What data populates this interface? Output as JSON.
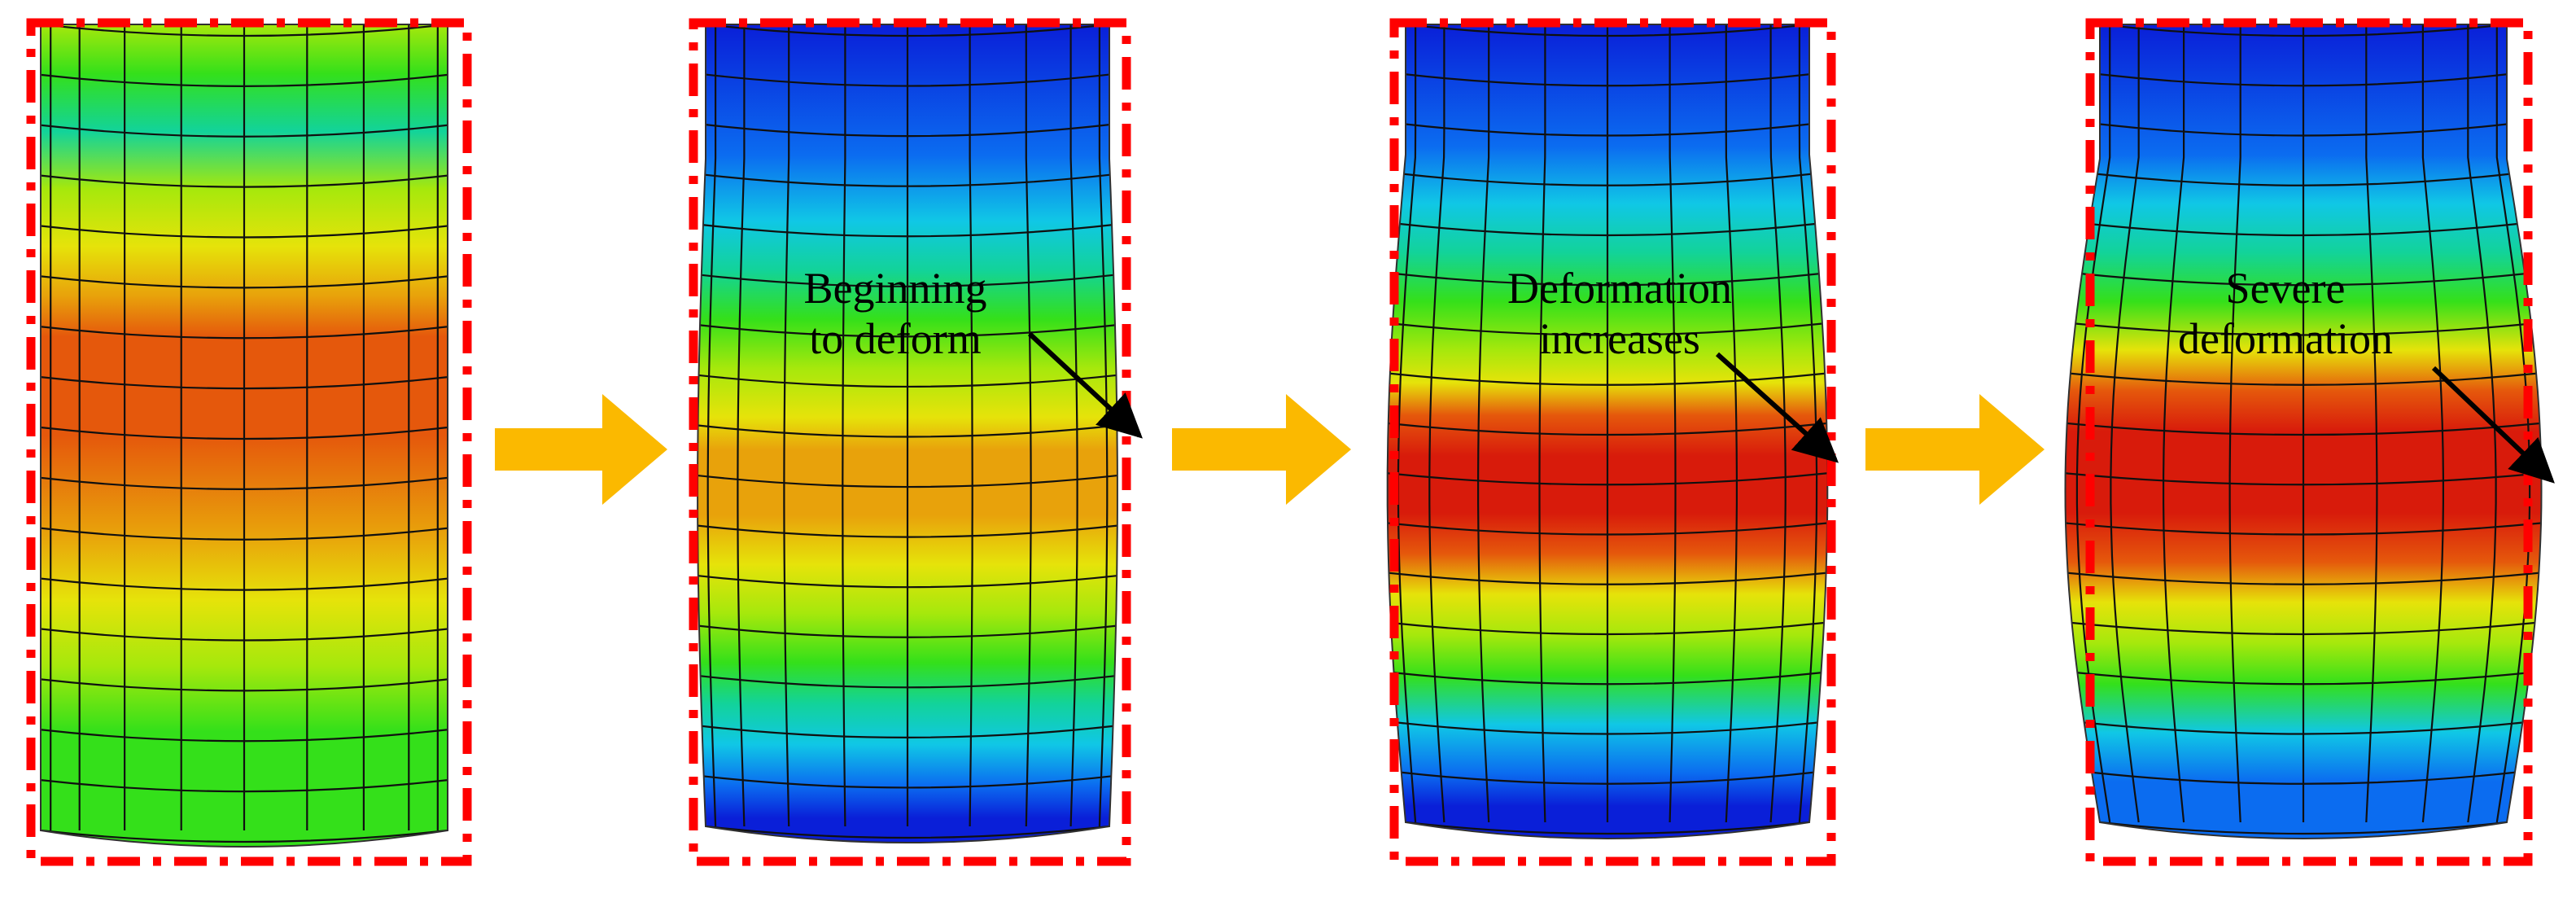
{
  "panels": [
    {
      "stage": "initial",
      "label_lines": [],
      "bulge": 0.0
    },
    {
      "stage": "beginning",
      "label_lines": [
        "Beginning",
        "to deform"
      ],
      "bulge": 0.04
    },
    {
      "stage": "increasing",
      "label_lines": [
        "Deformation",
        "increases"
      ],
      "bulge": 0.09
    },
    {
      "stage": "severe",
      "label_lines": [
        "Severe",
        "deformation"
      ],
      "bulge": 0.17
    }
  ],
  "colors": {
    "frame": "#ff0000",
    "arrow": "#fbb900",
    "pointer": "#000000",
    "mesh": "#101010",
    "scale": [
      "#0a1fd8",
      "#0b6cf0",
      "#10c7e6",
      "#12d39a",
      "#34e01a",
      "#a6e80c",
      "#e6e30a",
      "#e8a20b",
      "#e5580c",
      "#d81b0b"
    ]
  },
  "icons": {
    "flow_arrow": "right-arrow-icon",
    "pointer": "pointer-arrow-icon"
  }
}
